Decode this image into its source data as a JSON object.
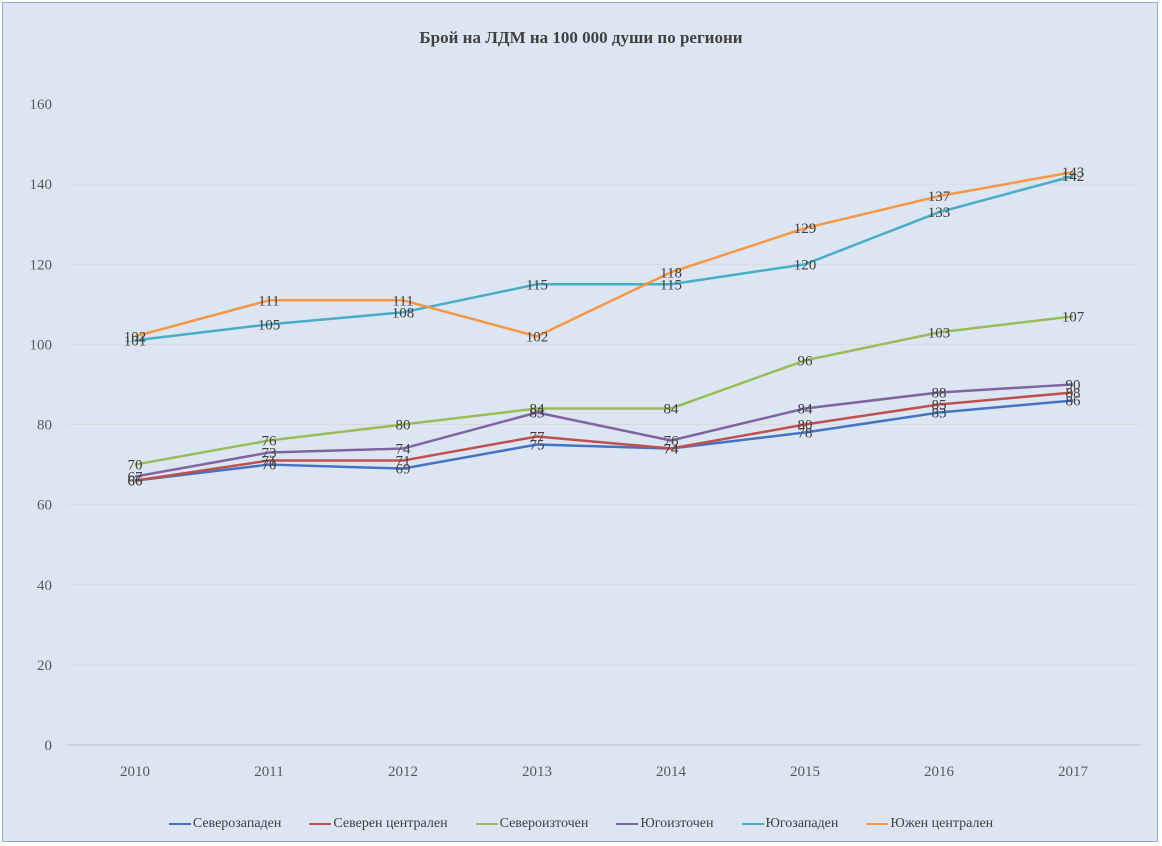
{
  "chart_data": {
    "type": "line",
    "title": "Брой на ЛДМ на 100 000 души по региони",
    "xlabel": "",
    "ylabel": "",
    "categories": [
      "2010",
      "2011",
      "2012",
      "2013",
      "2014",
      "2015",
      "2016",
      "2017"
    ],
    "ylim": [
      0,
      160
    ],
    "yticks": [
      0,
      20,
      40,
      60,
      80,
      100,
      120,
      140,
      160
    ],
    "grid": true,
    "legend_position": "bottom",
    "series": [
      {
        "name": "Северозападен",
        "color": "#4472c4",
        "values": [
          66,
          70,
          69,
          75,
          74,
          78,
          83,
          86
        ]
      },
      {
        "name": "Северен централен",
        "color": "#c0504d",
        "values": [
          66,
          71,
          71,
          77,
          74,
          80,
          85,
          88
        ]
      },
      {
        "name": "Североизточен",
        "color": "#9bbb59",
        "values": [
          70,
          76,
          80,
          84,
          84,
          96,
          103,
          107
        ]
      },
      {
        "name": "Югоизточен",
        "color": "#8064a2",
        "values": [
          67,
          73,
          74,
          83,
          76,
          84,
          88,
          90
        ]
      },
      {
        "name": "Югозападен",
        "color": "#4bacc6",
        "values": [
          101,
          105,
          108,
          115,
          115,
          120,
          133,
          142
        ]
      },
      {
        "name": "Южен централен",
        "color": "#f79646",
        "values": [
          102,
          111,
          111,
          102,
          118,
          129,
          137,
          143
        ]
      }
    ]
  }
}
